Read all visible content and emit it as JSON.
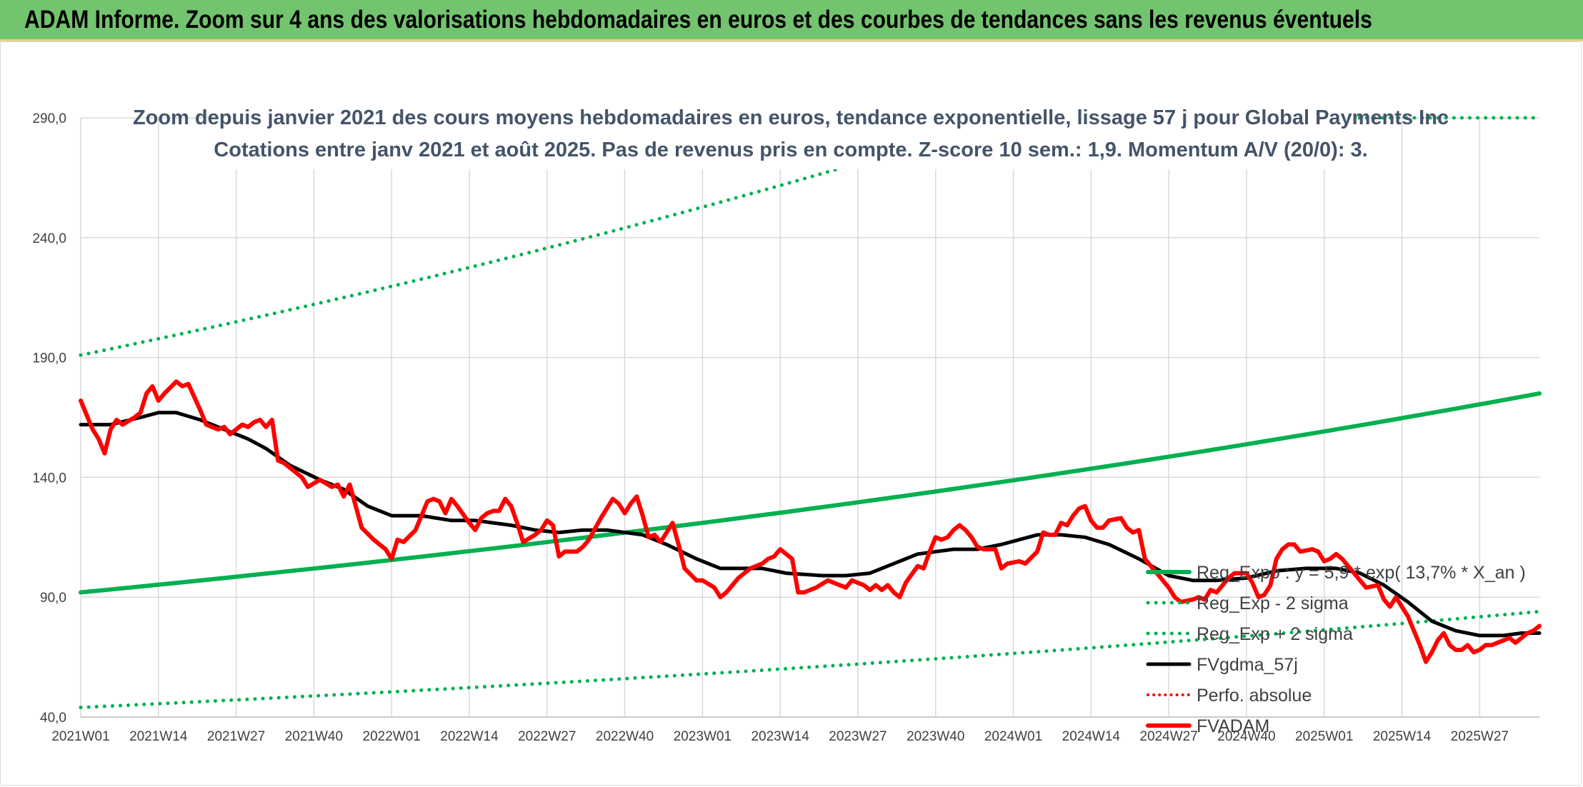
{
  "banner": {
    "title": "ADAM Informe. Zoom sur 4 ans des valorisations hebdomadaires en euros et des courbes de tendances sans les revenus éventuels"
  },
  "chart_data": {
    "type": "line",
    "title": "Zoom depuis janvier 2021 des cours moyens hebdomadaires en euros, tendance exponentielle, lissage 57 j pour Global Payments Inc",
    "subtitle": "Cotations entre janv 2021 et août 2025. Pas de revenus pris en compte. Z-score 10 sem.: 1,9. Momentum A/V (20/0): 3.",
    "xlabel": "",
    "ylabel": "",
    "ylim": [
      40,
      290
    ],
    "y_ticks": [
      "40,0",
      "90,0",
      "140,0",
      "190,0",
      "240,0",
      "290,0"
    ],
    "x_ticks": [
      "2021W01",
      "2021W14",
      "2021W27",
      "2021W40",
      "2022W01",
      "2022W14",
      "2022W27",
      "2022W40",
      "2023W01",
      "2023W14",
      "2023W27",
      "2023W40",
      "2024W01",
      "2024W14",
      "2024W27",
      "2024W40",
      "2025W01",
      "2025W14",
      "2025W27"
    ],
    "x_tick_index": [
      0,
      13,
      26,
      39,
      52,
      65,
      78,
      91,
      104,
      117,
      130,
      143,
      156,
      169,
      182,
      195,
      208,
      221,
      234
    ],
    "n_weeks": 245,
    "grid": true,
    "legend_position": "right",
    "colors": {
      "trend": "#00b050",
      "band": "#00b050",
      "smooth": "#000000",
      "perf": "#ff0000",
      "price": "#ff0000"
    },
    "series": [
      {
        "name": "Reg_Expo : y = 5,9 * exp( 13,7% *  X_an )",
        "style": "solid",
        "points": [
          [
            0,
            92
          ],
          [
            244,
            175
          ]
        ]
      },
      {
        "name": "Reg_Exp - 2 sigma",
        "style": "dotted",
        "points": [
          [
            0,
            44
          ],
          [
            244,
            84
          ]
        ]
      },
      {
        "name": "Reg_Exp + 2 sigma",
        "style": "dotted",
        "points": [
          [
            0,
            191
          ],
          [
            155,
            290
          ],
          [
            244,
            290
          ]
        ]
      },
      {
        "name": "FVgdma_57j",
        "style": "solid",
        "points": [
          [
            0,
            162
          ],
          [
            5,
            162
          ],
          [
            10,
            165
          ],
          [
            13,
            167
          ],
          [
            16,
            167
          ],
          [
            20,
            164
          ],
          [
            24,
            160
          ],
          [
            28,
            156
          ],
          [
            31,
            152
          ],
          [
            35,
            145
          ],
          [
            40,
            139
          ],
          [
            44,
            135
          ],
          [
            48,
            128
          ],
          [
            52,
            124
          ],
          [
            57,
            124
          ],
          [
            62,
            122
          ],
          [
            66,
            122
          ],
          [
            72,
            120
          ],
          [
            76,
            118
          ],
          [
            80,
            117
          ],
          [
            84,
            118
          ],
          [
            88,
            118
          ],
          [
            94,
            116
          ],
          [
            98,
            112
          ],
          [
            103,
            106
          ],
          [
            107,
            102
          ],
          [
            114,
            102
          ],
          [
            118,
            100
          ],
          [
            124,
            99
          ],
          [
            128,
            99
          ],
          [
            132,
            100
          ],
          [
            136,
            104
          ],
          [
            140,
            108
          ],
          [
            146,
            110
          ],
          [
            150,
            110
          ],
          [
            154,
            112
          ],
          [
            160,
            116
          ],
          [
            164,
            116
          ],
          [
            168,
            115
          ],
          [
            172,
            112
          ],
          [
            177,
            106
          ],
          [
            182,
            99
          ],
          [
            186,
            97
          ],
          [
            190,
            97
          ],
          [
            195,
            98
          ],
          [
            200,
            101
          ],
          [
            205,
            102
          ],
          [
            210,
            102
          ],
          [
            214,
            100
          ],
          [
            218,
            95
          ],
          [
            222,
            88
          ],
          [
            226,
            80
          ],
          [
            230,
            76
          ],
          [
            234,
            74
          ],
          [
            238,
            74
          ],
          [
            241,
            75
          ],
          [
            244,
            75
          ]
        ]
      },
      {
        "name": "Perfo. absolue",
        "style": "dotted",
        "points": []
      },
      {
        "name": "FVADAM",
        "style": "solid",
        "points": [
          [
            0,
            172
          ],
          [
            2,
            160
          ],
          [
            3,
            156
          ],
          [
            4,
            150
          ],
          [
            5,
            160
          ],
          [
            6,
            164
          ],
          [
            7,
            162
          ],
          [
            9,
            165
          ],
          [
            10,
            167
          ],
          [
            11,
            175
          ],
          [
            12,
            178
          ],
          [
            13,
            172
          ],
          [
            14,
            175
          ],
          [
            16,
            180
          ],
          [
            17,
            178
          ],
          [
            18,
            179
          ],
          [
            20,
            168
          ],
          [
            21,
            162
          ],
          [
            23,
            160
          ],
          [
            24,
            161
          ],
          [
            25,
            158
          ],
          [
            27,
            162
          ],
          [
            28,
            161
          ],
          [
            29,
            163
          ],
          [
            30,
            164
          ],
          [
            31,
            161
          ],
          [
            32,
            164
          ],
          [
            33,
            147
          ],
          [
            34,
            146
          ],
          [
            36,
            142
          ],
          [
            37,
            140
          ],
          [
            38,
            136
          ],
          [
            40,
            139
          ],
          [
            42,
            136
          ],
          [
            43,
            137
          ],
          [
            44,
            132
          ],
          [
            45,
            137
          ],
          [
            46,
            128
          ],
          [
            47,
            119
          ],
          [
            49,
            114
          ],
          [
            51,
            110
          ],
          [
            52,
            106
          ],
          [
            53,
            114
          ],
          [
            54,
            113
          ],
          [
            56,
            118
          ],
          [
            57,
            124
          ],
          [
            58,
            130
          ],
          [
            59,
            131
          ],
          [
            60,
            130
          ],
          [
            61,
            125
          ],
          [
            62,
            131
          ],
          [
            63,
            128
          ],
          [
            65,
            121
          ],
          [
            66,
            118
          ],
          [
            67,
            123
          ],
          [
            68,
            125
          ],
          [
            69,
            126
          ],
          [
            70,
            126
          ],
          [
            71,
            131
          ],
          [
            72,
            128
          ],
          [
            73,
            121
          ],
          [
            74,
            113
          ],
          [
            76,
            116
          ],
          [
            77,
            118
          ],
          [
            78,
            122
          ],
          [
            79,
            120
          ],
          [
            80,
            107
          ],
          [
            81,
            109
          ],
          [
            83,
            109
          ],
          [
            84,
            111
          ],
          [
            85,
            114
          ],
          [
            87,
            123
          ],
          [
            88,
            127
          ],
          [
            89,
            131
          ],
          [
            90,
            129
          ],
          [
            91,
            125
          ],
          [
            92,
            129
          ],
          [
            93,
            132
          ],
          [
            94,
            124
          ],
          [
            95,
            115
          ],
          [
            96,
            116
          ],
          [
            97,
            113
          ],
          [
            99,
            121
          ],
          [
            100,
            112
          ],
          [
            101,
            102
          ],
          [
            103,
            97
          ],
          [
            104,
            97
          ],
          [
            106,
            94
          ],
          [
            107,
            90
          ],
          [
            108,
            92
          ],
          [
            109,
            95
          ],
          [
            110,
            98
          ],
          [
            112,
            102
          ],
          [
            114,
            104
          ],
          [
            115,
            106
          ],
          [
            116,
            107
          ],
          [
            117,
            110
          ],
          [
            118,
            108
          ],
          [
            119,
            106
          ],
          [
            120,
            92
          ],
          [
            121,
            92
          ],
          [
            123,
            94
          ],
          [
            125,
            97
          ],
          [
            126,
            96
          ],
          [
            127,
            95
          ],
          [
            128,
            94
          ],
          [
            129,
            97
          ],
          [
            130,
            96
          ],
          [
            131,
            95
          ],
          [
            132,
            93
          ],
          [
            133,
            95
          ],
          [
            134,
            93
          ],
          [
            135,
            95
          ],
          [
            136,
            92
          ],
          [
            137,
            90
          ],
          [
            138,
            96
          ],
          [
            140,
            103
          ],
          [
            141,
            102
          ],
          [
            142,
            109
          ],
          [
            143,
            115
          ],
          [
            144,
            114
          ],
          [
            145,
            115
          ],
          [
            146,
            118
          ],
          [
            147,
            120
          ],
          [
            148,
            118
          ],
          [
            149,
            115
          ],
          [
            150,
            111
          ],
          [
            151,
            110
          ],
          [
            153,
            110
          ],
          [
            154,
            102
          ],
          [
            155,
            104
          ],
          [
            157,
            105
          ],
          [
            158,
            104
          ],
          [
            160,
            109
          ],
          [
            161,
            117
          ],
          [
            162,
            116
          ],
          [
            163,
            116
          ],
          [
            164,
            121
          ],
          [
            165,
            120
          ],
          [
            166,
            124
          ],
          [
            167,
            127
          ],
          [
            168,
            128
          ],
          [
            169,
            122
          ],
          [
            170,
            119
          ],
          [
            171,
            119
          ],
          [
            172,
            122
          ],
          [
            174,
            123
          ],
          [
            175,
            119
          ],
          [
            176,
            117
          ],
          [
            177,
            118
          ],
          [
            178,
            106
          ],
          [
            179,
            103
          ],
          [
            180,
            100
          ],
          [
            182,
            94
          ],
          [
            183,
            90
          ],
          [
            184,
            88
          ],
          [
            186,
            89
          ],
          [
            187,
            90
          ],
          [
            188,
            89
          ],
          [
            189,
            93
          ],
          [
            190,
            92
          ],
          [
            191,
            95
          ],
          [
            192,
            98
          ],
          [
            193,
            100
          ],
          [
            195,
            100
          ],
          [
            196,
            96
          ],
          [
            197,
            90
          ],
          [
            198,
            91
          ],
          [
            199,
            95
          ],
          [
            200,
            106
          ],
          [
            201,
            110
          ],
          [
            202,
            112
          ],
          [
            203,
            112
          ],
          [
            204,
            109
          ],
          [
            206,
            110
          ],
          [
            207,
            109
          ],
          [
            208,
            105
          ],
          [
            209,
            106
          ],
          [
            210,
            108
          ],
          [
            211,
            106
          ],
          [
            213,
            100
          ],
          [
            214,
            97
          ],
          [
            215,
            94
          ],
          [
            217,
            95
          ],
          [
            218,
            89
          ],
          [
            219,
            86
          ],
          [
            220,
            90
          ],
          [
            221,
            86
          ],
          [
            222,
            82
          ],
          [
            223,
            76
          ],
          [
            224,
            70
          ],
          [
            225,
            63
          ],
          [
            226,
            67
          ],
          [
            227,
            72
          ],
          [
            228,
            75
          ],
          [
            229,
            70
          ],
          [
            230,
            68
          ],
          [
            231,
            68
          ],
          [
            232,
            70
          ],
          [
            233,
            67
          ],
          [
            234,
            68
          ],
          [
            235,
            70
          ],
          [
            236,
            70
          ],
          [
            237,
            71
          ],
          [
            238,
            72
          ],
          [
            239,
            73
          ],
          [
            240,
            71
          ],
          [
            241,
            73
          ],
          [
            242,
            75
          ],
          [
            243,
            76
          ],
          [
            244,
            78
          ]
        ]
      }
    ]
  }
}
